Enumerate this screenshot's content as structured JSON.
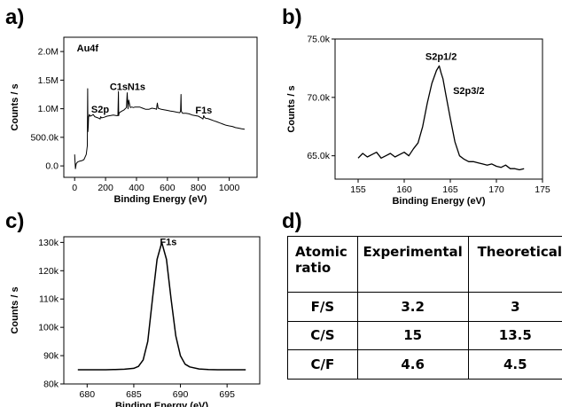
{
  "panel_labels": [
    "a)",
    "b)",
    "c)",
    "d)"
  ],
  "chart_data": [
    {
      "type": "line",
      "xlabel": "Binding Energy (eV)",
      "ylabel": "Counts / s",
      "xlim": [
        -70,
        1180
      ],
      "ylim": [
        -200000,
        2250000
      ],
      "xticks": [
        0,
        200,
        400,
        600,
        800,
        1000
      ],
      "xtick_labels": [
        "0",
        "200",
        "400",
        "600",
        "800",
        "1000"
      ],
      "yticks": [
        0,
        500000,
        1000000,
        1500000,
        2000000
      ],
      "ytick_labels": [
        "0.0",
        "500.0k",
        "1.0M",
        "1.5M",
        "2.0M"
      ],
      "series": [
        {
          "x": [
            0,
            5,
            10,
            20,
            30,
            45,
            60,
            75,
            82,
            84,
            86,
            88,
            90,
            95,
            100,
            110,
            120,
            130,
            150,
            160,
            165,
            168,
            175,
            190,
            210,
            230,
            250,
            270,
            280,
            283,
            285,
            287,
            290,
            300,
            320,
            335,
            340,
            345,
            350,
            360,
            370,
            380,
            390,
            400,
            420,
            440,
            460,
            480,
            500,
            520,
            530,
            532,
            535,
            540,
            560,
            580,
            600,
            620,
            640,
            660,
            680,
            685,
            688,
            690,
            695,
            700,
            720,
            740,
            760,
            780,
            800,
            820,
            830,
            835,
            840,
            850,
            860,
            880,
            900,
            920,
            940,
            960,
            980,
            1000,
            1020,
            1040,
            1060,
            1080,
            1100
          ],
          "y": [
            200000,
            -50000,
            40000,
            70000,
            80000,
            90000,
            110000,
            200000,
            350000,
            1350000,
            600000,
            700000,
            850000,
            900000,
            870000,
            880000,
            900000,
            860000,
            840000,
            830000,
            820000,
            860000,
            840000,
            850000,
            870000,
            880000,
            890000,
            880000,
            880000,
            1300000,
            880000,
            920000,
            930000,
            950000,
            980000,
            1020000,
            1280000,
            1000000,
            1150000,
            1020000,
            1030000,
            1020000,
            1030000,
            1030000,
            1030000,
            1010000,
            990000,
            990000,
            1010000,
            1000000,
            990000,
            1050000,
            1100000,
            1010000,
            990000,
            980000,
            970000,
            960000,
            950000,
            940000,
            930000,
            960000,
            1250000,
            960000,
            930000,
            920000,
            920000,
            910000,
            890000,
            880000,
            870000,
            840000,
            820000,
            880000,
            850000,
            830000,
            830000,
            810000,
            790000,
            770000,
            750000,
            730000,
            710000,
            700000,
            690000,
            670000,
            660000,
            650000,
            640000
          ]
        }
      ],
      "annotations": [
        {
          "text": "Au4f",
          "x": 84,
          "y": 2000000
        },
        {
          "text": "S2p",
          "x": 165,
          "y": 930000
        },
        {
          "text": "C1s",
          "x": 285,
          "y": 1330000
        },
        {
          "text": "N1s",
          "x": 400,
          "y": 1330000
        },
        {
          "text": "F1s",
          "x": 835,
          "y": 920000
        }
      ]
    },
    {
      "type": "line",
      "xlabel": "Binding Energy (eV)",
      "ylabel": "Counts / s",
      "xlim": [
        152.5,
        175
      ],
      "ylim": [
        63000,
        75000
      ],
      "xticks": [
        155,
        160,
        165,
        170,
        175
      ],
      "xtick_labels": [
        "155",
        "160",
        "165",
        "170",
        "175"
      ],
      "yticks": [
        65000,
        70000,
        75000
      ],
      "ytick_labels": [
        "65.0k",
        "70.0k",
        "75.0k"
      ],
      "series": [
        {
          "x": [
            155,
            155.5,
            156,
            156.5,
            157,
            157.5,
            158,
            158.5,
            159,
            159.5,
            160,
            160.5,
            161,
            161.5,
            162,
            162.5,
            163,
            163.5,
            163.8,
            164,
            164.2,
            164.5,
            165,
            165.5,
            166,
            166.5,
            167,
            167.5,
            168,
            168.5,
            169,
            169.5,
            170,
            170.5,
            171,
            171.5,
            172,
            172.5,
            173
          ],
          "y": [
            64800,
            65200,
            64900,
            65100,
            65300,
            64800,
            65000,
            65200,
            64900,
            65100,
            65300,
            65000,
            65600,
            66100,
            67500,
            69500,
            71200,
            72300,
            72700,
            72100,
            71600,
            70300,
            68200,
            66200,
            65000,
            64700,
            64500,
            64500,
            64400,
            64300,
            64200,
            64300,
            64100,
            64000,
            64200,
            63900,
            63900,
            63800,
            63900
          ]
        }
      ],
      "annotations": [
        {
          "text": "S2p1/2",
          "x": 164,
          "y": 73200
        },
        {
          "text": "S2p3/2",
          "x": 167,
          "y": 70300
        }
      ]
    },
    {
      "type": "line",
      "xlabel": "Binding Energy (eV)",
      "ylabel": "Counts / s",
      "xlim": [
        677.5,
        698.5
      ],
      "ylim": [
        80000,
        132000
      ],
      "xticks": [
        680,
        685,
        690,
        695
      ],
      "xtick_labels": [
        "680",
        "685",
        "690",
        "695"
      ],
      "yticks": [
        80000,
        90000,
        100000,
        110000,
        120000,
        130000
      ],
      "ytick_labels": [
        "80k",
        "90k",
        "100k",
        "110k",
        "120k",
        "130k"
      ],
      "series": [
        {
          "x": [
            679,
            680,
            681,
            682,
            683,
            684,
            685,
            685.5,
            686,
            686.5,
            687,
            687.5,
            688,
            688.5,
            689,
            689.5,
            690,
            690.5,
            691,
            692,
            693,
            694,
            695,
            696,
            697
          ],
          "y": [
            85000,
            85000,
            85000,
            85000,
            85100,
            85200,
            85500,
            86200,
            88500,
            95000,
            110000,
            124000,
            130000,
            124000,
            110000,
            97000,
            90000,
            87000,
            86000,
            85300,
            85100,
            85000,
            85000,
            85000,
            85000
          ]
        }
      ],
      "annotations": [
        {
          "text": "F1s",
          "x": 688.7,
          "y": 129000
        }
      ]
    }
  ],
  "ratio_table": {
    "header": [
      "Atomic ratio",
      "Experimental",
      "Theoretical"
    ],
    "rows": [
      [
        "F/S",
        "3.2",
        "3"
      ],
      [
        "C/S",
        "15",
        "13.5"
      ],
      [
        "C/F",
        "4.6",
        "4.5"
      ]
    ]
  }
}
